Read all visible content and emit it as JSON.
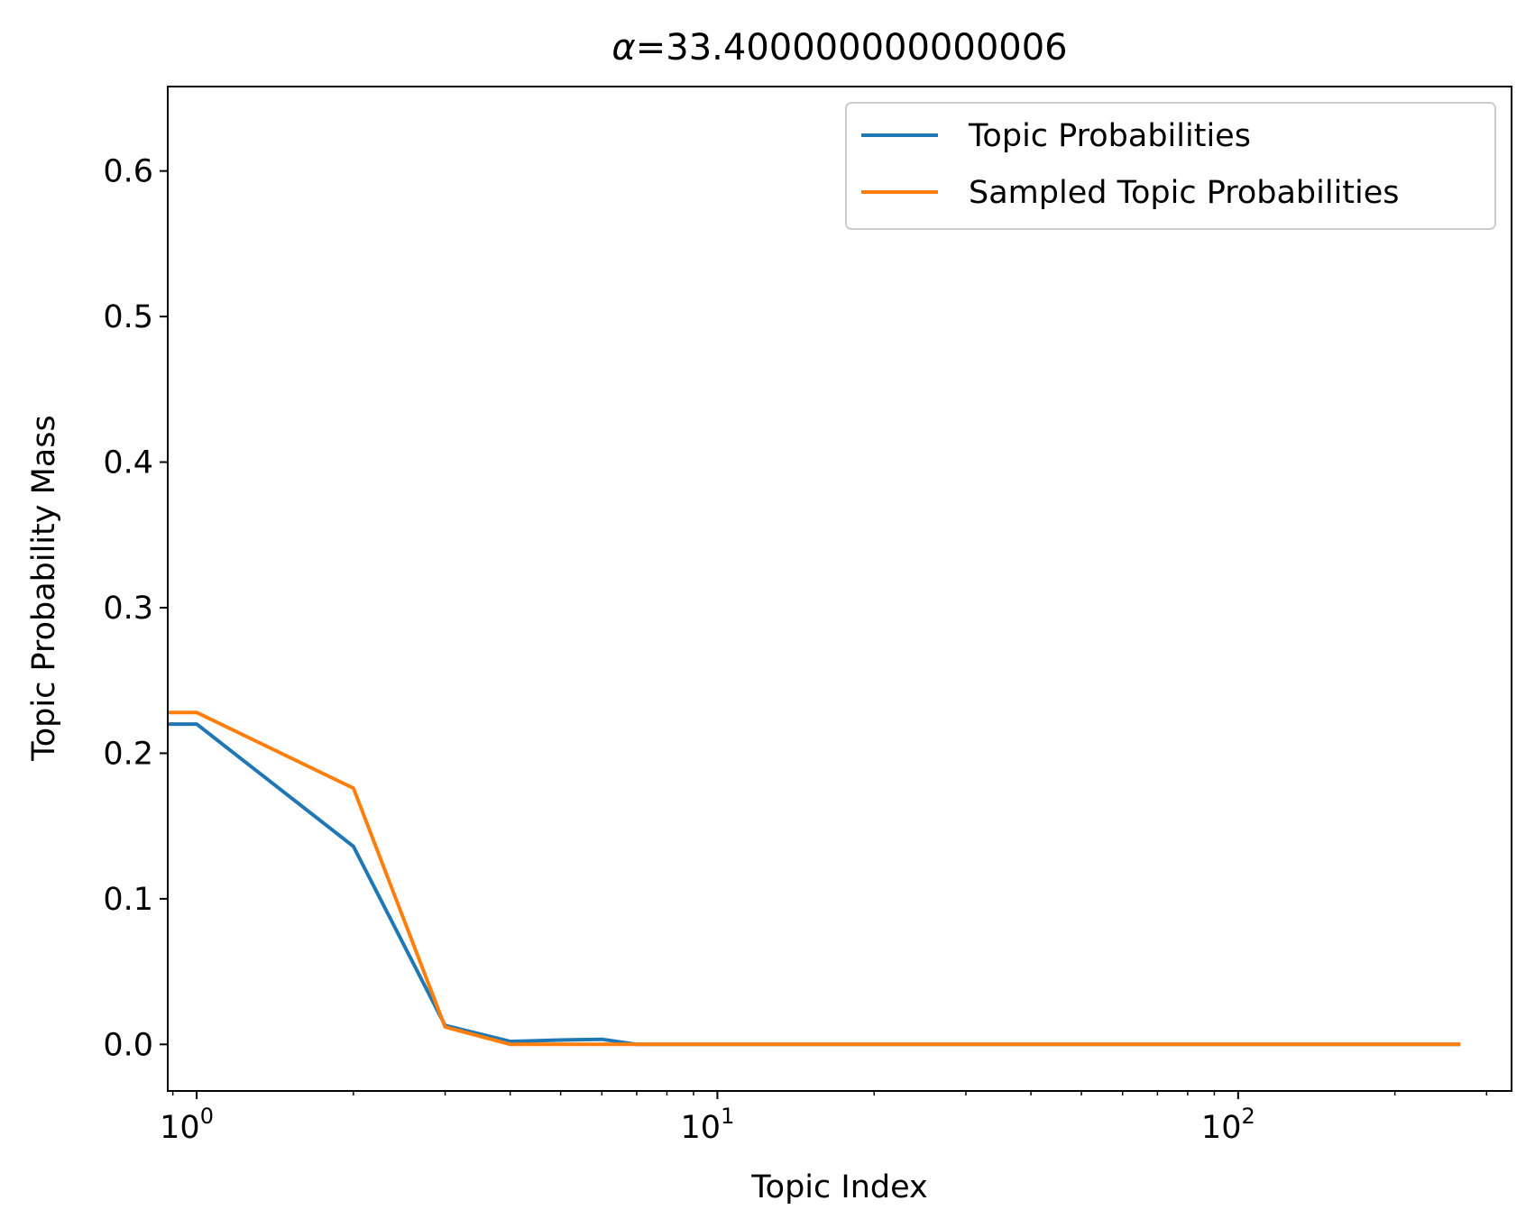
{
  "chart_data": {
    "type": "line",
    "title_symbol": "α",
    "title_value": "=33.400000000000006",
    "xlabel": "Topic Index",
    "ylabel": "Topic Probability Mass",
    "xscale": "log",
    "xlim": [
      0.88,
      335
    ],
    "ylim": [
      -0.032,
      0.658
    ],
    "yticks": [
      0.0,
      0.1,
      0.2,
      0.3,
      0.4,
      0.5,
      0.6
    ],
    "ytick_labels": [
      "0.0",
      "0.1",
      "0.2",
      "0.3",
      "0.4",
      "0.5",
      "0.6"
    ],
    "xticks": [
      {
        "value": 1,
        "base": "10",
        "exp": "0"
      },
      {
        "value": 10,
        "base": "10",
        "exp": "1"
      },
      {
        "value": 100,
        "base": "10",
        "exp": "2"
      }
    ],
    "grid": false,
    "legend_position": "top-right",
    "series": [
      {
        "name": "Topic Probabilities",
        "color": "#1f77b4",
        "points": [
          [
            0,
            0.22
          ],
          [
            1,
            0.22
          ],
          [
            2,
            0.136
          ],
          [
            3,
            0.013
          ],
          [
            4,
            0.002
          ],
          [
            5,
            0.003
          ],
          [
            6,
            0.0035
          ],
          [
            7,
            0.0
          ],
          [
            8,
            0.0
          ],
          [
            20,
            0.0
          ],
          [
            50,
            0.0
          ],
          [
            100,
            0.0
          ],
          [
            200,
            0.0
          ],
          [
            265,
            0.0
          ]
        ]
      },
      {
        "name": "Sampled Topic Probabilities",
        "color": "#ff7f0e",
        "points": [
          [
            0,
            0.228
          ],
          [
            1,
            0.228
          ],
          [
            2,
            0.176
          ],
          [
            3,
            0.012
          ],
          [
            4,
            0.0
          ],
          [
            5,
            0.0
          ],
          [
            6,
            0.0
          ],
          [
            7,
            0.0
          ],
          [
            8,
            0.0
          ],
          [
            20,
            0.0
          ],
          [
            50,
            0.0
          ],
          [
            100,
            0.0
          ],
          [
            200,
            0.0
          ],
          [
            265,
            0.0
          ]
        ]
      }
    ]
  }
}
